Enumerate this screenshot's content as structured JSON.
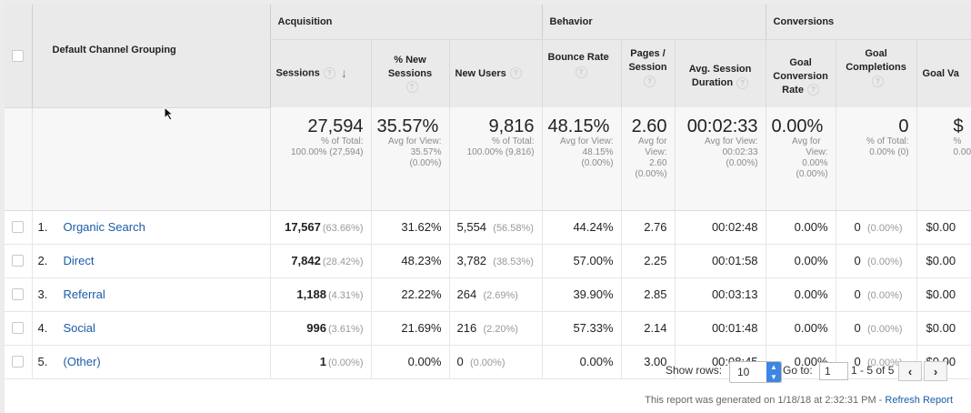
{
  "groups": {
    "acquisition": "Acquisition",
    "behavior": "Behavior",
    "conversions": "Conversions"
  },
  "columns": {
    "dimension": "Default Channel Grouping",
    "sessions": "Sessions",
    "new_sessions": "% New Sessions",
    "new_users": "New Users",
    "bounce_rate": "Bounce Rate",
    "pages_session": "Pages / Session",
    "avg_duration": "Avg. Session Duration",
    "goal_conv_rate": "Goal Conversion Rate",
    "goal_completions": "Goal Completions",
    "goal_value": "Goal Va"
  },
  "help_icon": "?",
  "sort_icon": "↓",
  "totals": {
    "sessions": {
      "value": "27,594",
      "l1": "% of Total:",
      "l2": "100.00% (27,594)"
    },
    "new_sessions": {
      "value": "35.57%",
      "l1": "Avg for View:",
      "l2": "35.57%",
      "l3": "(0.00%)"
    },
    "new_users": {
      "value": "9,816",
      "l1": "% of Total:",
      "l2": "100.00% (9,816)"
    },
    "bounce_rate": {
      "value": "48.15%",
      "l1": "Avg for View:",
      "l2": "48.15%",
      "l3": "(0.00%)"
    },
    "pages_session": {
      "value": "2.60",
      "l1": "Avg for",
      "l2": "View:",
      "l3": "2.60",
      "l4": "(0.00%)"
    },
    "avg_duration": {
      "value": "00:02:33",
      "l1": "Avg for View:",
      "l2": "00:02:33",
      "l3": "(0.00%)"
    },
    "goal_conv_rate": {
      "value": "0.00%",
      "l1": "Avg for",
      "l2": "View:",
      "l3": "0.00%",
      "l4": "(0.00%)"
    },
    "goal_completions": {
      "value": "0",
      "l1": "% of Total:",
      "l2": "0.00% (0)"
    },
    "goal_value": {
      "value": "$",
      "l1": "%",
      "l2": "0.00"
    }
  },
  "rows": [
    {
      "index": "1.",
      "name": "Organic Search",
      "sessions": "17,567",
      "sessions_pct": "(63.66%)",
      "new_sessions": "31.62%",
      "new_users": "5,554",
      "new_users_pct": "(56.58%)",
      "bounce_rate": "44.24%",
      "pages_session": "2.76",
      "avg_duration": "00:02:48",
      "goal_conv_rate": "0.00%",
      "goal_completions": "0",
      "goal_completions_pct": "(0.00%)",
      "goal_value": "$0.00"
    },
    {
      "index": "2.",
      "name": "Direct",
      "sessions": "7,842",
      "sessions_pct": "(28.42%)",
      "new_sessions": "48.23%",
      "new_users": "3,782",
      "new_users_pct": "(38.53%)",
      "bounce_rate": "57.00%",
      "pages_session": "2.25",
      "avg_duration": "00:01:58",
      "goal_conv_rate": "0.00%",
      "goal_completions": "0",
      "goal_completions_pct": "(0.00%)",
      "goal_value": "$0.00"
    },
    {
      "index": "3.",
      "name": "Referral",
      "sessions": "1,188",
      "sessions_pct": "(4.31%)",
      "new_sessions": "22.22%",
      "new_users": "264",
      "new_users_pct": "(2.69%)",
      "bounce_rate": "39.90%",
      "pages_session": "2.85",
      "avg_duration": "00:03:13",
      "goal_conv_rate": "0.00%",
      "goal_completions": "0",
      "goal_completions_pct": "(0.00%)",
      "goal_value": "$0.00"
    },
    {
      "index": "4.",
      "name": "Social",
      "sessions": "996",
      "sessions_pct": "(3.61%)",
      "new_sessions": "21.69%",
      "new_users": "216",
      "new_users_pct": "(2.20%)",
      "bounce_rate": "57.33%",
      "pages_session": "2.14",
      "avg_duration": "00:01:48",
      "goal_conv_rate": "0.00%",
      "goal_completions": "0",
      "goal_completions_pct": "(0.00%)",
      "goal_value": "$0.00"
    },
    {
      "index": "5.",
      "name": "(Other)",
      "sessions": "1",
      "sessions_pct": "(0.00%)",
      "new_sessions": "0.00%",
      "new_users": "0",
      "new_users_pct": "(0.00%)",
      "bounce_rate": "0.00%",
      "pages_session": "3.00",
      "avg_duration": "00:08:45",
      "goal_conv_rate": "0.00%",
      "goal_completions": "0",
      "goal_completions_pct": "(0.00%)",
      "goal_value": "$0.00"
    }
  ],
  "footer": {
    "show_rows_label": "Show rows:",
    "show_rows_value": "10",
    "goto_label": "Go to:",
    "goto_value": "1",
    "range": "1 - 5 of 5",
    "prev": "‹",
    "next": "›",
    "report_text": "This report was generated on 1/18/18 at 2:32:31 PM - ",
    "refresh": "Refresh Report"
  }
}
